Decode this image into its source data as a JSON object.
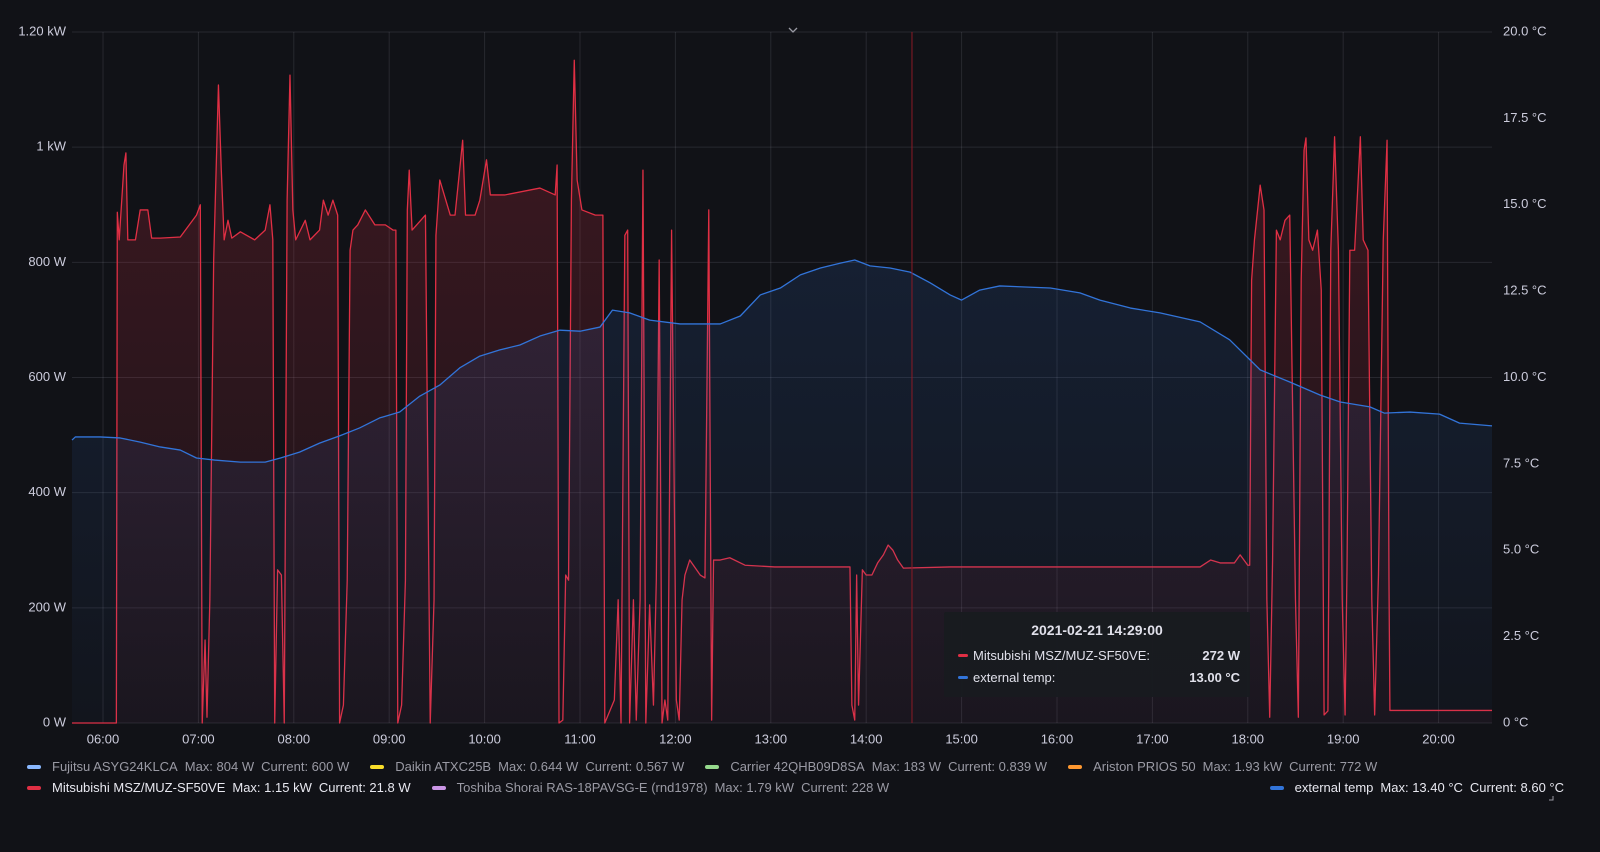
{
  "chart_data": {
    "type": "line",
    "xlim": [
      5.675,
      20.56
    ],
    "xticks": [
      {
        "value": 6,
        "label": "06:00"
      },
      {
        "value": 7,
        "label": "07:00"
      },
      {
        "value": 8,
        "label": "08:00"
      },
      {
        "value": 9,
        "label": "09:00"
      },
      {
        "value": 10,
        "label": "10:00"
      },
      {
        "value": 11,
        "label": "11:00"
      },
      {
        "value": 12,
        "label": "12:00"
      },
      {
        "value": 13,
        "label": "13:00"
      },
      {
        "value": 14,
        "label": "14:00"
      },
      {
        "value": 15,
        "label": "15:00"
      },
      {
        "value": 16,
        "label": "16:00"
      },
      {
        "value": 17,
        "label": "17:00"
      },
      {
        "value": 18,
        "label": "18:00"
      },
      {
        "value": 19,
        "label": "19:00"
      },
      {
        "value": 20,
        "label": "20:00"
      }
    ],
    "ylim": [
      0,
      1200
    ],
    "yticks": [
      {
        "value": 0,
        "label": "0 W"
      },
      {
        "value": 200,
        "label": "200 W"
      },
      {
        "value": 400,
        "label": "400 W"
      },
      {
        "value": 600,
        "label": "600 W"
      },
      {
        "value": 800,
        "label": "800 W"
      },
      {
        "value": 1000,
        "label": "1 kW"
      },
      {
        "value": 1200,
        "label": "1.20 kW"
      }
    ],
    "y2lim": [
      0,
      20
    ],
    "y2ticks": [
      {
        "value": 0,
        "label": "0 °C"
      },
      {
        "value": 2.5,
        "label": "2.5 °C"
      },
      {
        "value": 5,
        "label": "5.0 °C"
      },
      {
        "value": 7.5,
        "label": "7.5 °C"
      },
      {
        "value": 10,
        "label": "10.0 °C"
      },
      {
        "value": 12.5,
        "label": "12.5 °C"
      },
      {
        "value": 15,
        "label": "15.0 °C"
      },
      {
        "value": 17.5,
        "label": "17.5 °C"
      },
      {
        "value": 20,
        "label": "20.0 °C"
      }
    ],
    "grid": true,
    "series": [
      {
        "name": "Mitsubishi MSZ/MUZ-SF50VE",
        "color": "#e02f44",
        "axis": "y",
        "max": "Max: 1.15 kW",
        "current": "Current: 21.8 W",
        "x": [
          5.675,
          6.14,
          6.15,
          6.17,
          6.22,
          6.24,
          6.26,
          6.34,
          6.39,
          6.47,
          6.51,
          6.6,
          6.81,
          6.98,
          7.02,
          7.04,
          7.07,
          7.09,
          7.12,
          7.16,
          7.21,
          7.24,
          7.27,
          7.31,
          7.35,
          7.44,
          7.59,
          7.7,
          7.75,
          7.78,
          7.8,
          7.83,
          7.87,
          7.9,
          7.93,
          7.96,
          7.99,
          8.02,
          8.12,
          8.17,
          8.27,
          8.31,
          8.36,
          8.41,
          8.46,
          8.48,
          8.52,
          8.56,
          8.59,
          8.62,
          8.67,
          8.75,
          8.85,
          8.96,
          9.04,
          9.07,
          9.09,
          9.13,
          9.17,
          9.19,
          9.21,
          9.24,
          9.38,
          9.43,
          9.47,
          9.49,
          9.53,
          9.64,
          9.69,
          9.77,
          9.8,
          9.9,
          9.95,
          10.02,
          10.06,
          10.21,
          10.58,
          10.74,
          10.76,
          10.78,
          10.82,
          10.85,
          10.88,
          10.91,
          10.94,
          10.97,
          11.02,
          11.16,
          11.24,
          11.26,
          11.36,
          11.4,
          11.43,
          11.47,
          11.5,
          11.52,
          11.56,
          11.59,
          11.63,
          11.66,
          11.69,
          11.73,
          11.77,
          11.8,
          11.83,
          11.86,
          11.89,
          11.92,
          11.96,
          12.01,
          12.04,
          12.07,
          12.1,
          12.15,
          12.26,
          12.31,
          12.35,
          12.38,
          12.4,
          12.47,
          12.57,
          12.73,
          13.04,
          13.31,
          13.83,
          13.85,
          13.88,
          13.9,
          13.92,
          13.96,
          14.0,
          14.06,
          14.12,
          14.18,
          14.23,
          14.28,
          14.33,
          14.39,
          14.88,
          15.93,
          16.97,
          17.5,
          17.61,
          17.71,
          17.86,
          17.92,
          18.0,
          18.02,
          18.04,
          18.07,
          18.13,
          18.17,
          18.2,
          18.23,
          18.26,
          18.3,
          18.34,
          18.39,
          18.44,
          18.5,
          18.53,
          18.56,
          18.59,
          18.61,
          18.64,
          18.68,
          18.73,
          18.77,
          18.8,
          18.84,
          18.87,
          18.91,
          18.95,
          18.99,
          19.02,
          19.04,
          19.07,
          19.12,
          19.18,
          19.21,
          19.26,
          19.3,
          19.33,
          19.37,
          19.42,
          19.46,
          19.48,
          19.49,
          20.56
        ],
        "values": [
          0,
          0,
          887,
          839,
          969,
          990,
          839,
          839,
          891,
          891,
          842,
          842,
          844,
          882,
          900,
          0,
          144,
          10,
          214,
          804,
          1108,
          960,
          839,
          873,
          842,
          853,
          839,
          856,
          900,
          839,
          0,
          266,
          257,
          0,
          908,
          1125,
          891,
          839,
          873,
          839,
          856,
          908,
          882,
          908,
          882,
          0,
          31,
          248,
          821,
          856,
          865,
          891,
          865,
          865,
          856,
          856,
          0,
          31,
          248,
          891,
          960,
          856,
          882,
          0,
          214,
          847,
          943,
          882,
          882,
          1012,
          882,
          882,
          908,
          978,
          917,
          917,
          929,
          917,
          969,
          0,
          5,
          257,
          248,
          908,
          1151,
          943,
          891,
          882,
          882,
          0,
          40,
          214,
          0,
          847,
          856,
          0,
          214,
          5,
          214,
          960,
          0,
          205,
          31,
          248,
          804,
          0,
          40,
          5,
          856,
          40,
          5,
          214,
          257,
          283,
          257,
          252,
          891,
          5,
          283,
          283,
          287,
          274,
          271,
          271,
          271,
          31,
          5,
          257,
          31,
          266,
          257,
          257,
          278,
          292,
          309,
          300,
          283,
          269,
          271,
          271,
          271,
          271,
          283,
          278,
          278,
          292,
          274,
          274,
          769,
          839,
          934,
          891,
          214,
          10,
          283,
          856,
          839,
          873,
          882,
          214,
          10,
          769,
          995,
          1016,
          839,
          821,
          856,
          752,
          14,
          21,
          821,
          1018,
          821,
          214,
          14,
          266,
          821,
          821,
          1018,
          839,
          821,
          214,
          14,
          257,
          839,
          1012,
          248,
          21.8,
          21.8
        ]
      },
      {
        "name": "external temp",
        "color": "#3274d9",
        "axis": "y2",
        "max": "Max: 13.40 °C",
        "current": "Current: 8.60 °C",
        "x": [
          5.675,
          5.71,
          5.97,
          6.18,
          6.39,
          6.6,
          6.81,
          6.98,
          7.17,
          7.44,
          7.7,
          7.86,
          8.06,
          8.27,
          8.48,
          8.69,
          8.9,
          9.11,
          9.32,
          9.53,
          9.74,
          9.95,
          10.16,
          10.37,
          10.58,
          10.79,
          11.0,
          11.21,
          11.34,
          11.52,
          11.73,
          12.05,
          12.47,
          12.68,
          12.89,
          13.1,
          13.31,
          13.52,
          13.73,
          13.88,
          14.04,
          14.25,
          14.46,
          14.67,
          14.88,
          15.0,
          15.19,
          15.4,
          15.93,
          16.24,
          16.45,
          16.77,
          17.08,
          17.5,
          17.81,
          18.13,
          18.44,
          18.76,
          18.97,
          19.28,
          19.43,
          19.7,
          20.01,
          20.22,
          20.56
        ],
        "values": [
          8.19,
          8.28,
          8.28,
          8.25,
          8.13,
          7.99,
          7.9,
          7.67,
          7.61,
          7.55,
          7.55,
          7.67,
          7.84,
          8.1,
          8.31,
          8.54,
          8.83,
          9.0,
          9.46,
          9.78,
          10.28,
          10.62,
          10.8,
          10.94,
          11.2,
          11.37,
          11.34,
          11.46,
          11.95,
          11.87,
          11.66,
          11.55,
          11.55,
          11.78,
          12.39,
          12.59,
          12.97,
          13.17,
          13.31,
          13.4,
          13.23,
          13.17,
          13.05,
          12.74,
          12.39,
          12.24,
          12.53,
          12.65,
          12.59,
          12.45,
          12.24,
          12.01,
          11.87,
          11.61,
          11.09,
          10.22,
          9.87,
          9.49,
          9.29,
          9.15,
          8.97,
          9.0,
          8.94,
          8.68,
          8.6
        ]
      }
    ],
    "hidden_series": [
      {
        "name": "Fujitsu ASYG24KLCA",
        "color": "#8ab8ff",
        "max": "Max: 804 W",
        "current": "Current: 600 W"
      },
      {
        "name": "Daikin ATXC25B",
        "color": "#fade2a",
        "max": "Max: 0.644 W",
        "current": "Current: 0.567 W"
      },
      {
        "name": "Carrier 42QHB09D8SA",
        "color": "#96d98d",
        "max": "Max: 183 W",
        "current": "Current: 0.839 W"
      },
      {
        "name": "Ariston PRIOS 50",
        "color": "#ff9830",
        "max": "Max: 1.93 kW",
        "current": "Current: 772 W"
      },
      {
        "name": "Toshiba Shorai RAS-18PAVSG-E (rnd1978)",
        "color": "#ca95e5",
        "max": "Max: 1.79 kW",
        "current": "Current: 228 W"
      }
    ],
    "cursor_x": 14.48,
    "cursor_color": "#8b1a25",
    "tooltip": {
      "title": "2021-02-21 14:29:00",
      "rows": [
        {
          "name": "Mitsubishi MSZ/MUZ-SF50VE:",
          "value": "272 W",
          "color": "#e02f44"
        },
        {
          "name": "external temp:",
          "value": "13.00 °C",
          "color": "#3274d9"
        }
      ]
    }
  }
}
